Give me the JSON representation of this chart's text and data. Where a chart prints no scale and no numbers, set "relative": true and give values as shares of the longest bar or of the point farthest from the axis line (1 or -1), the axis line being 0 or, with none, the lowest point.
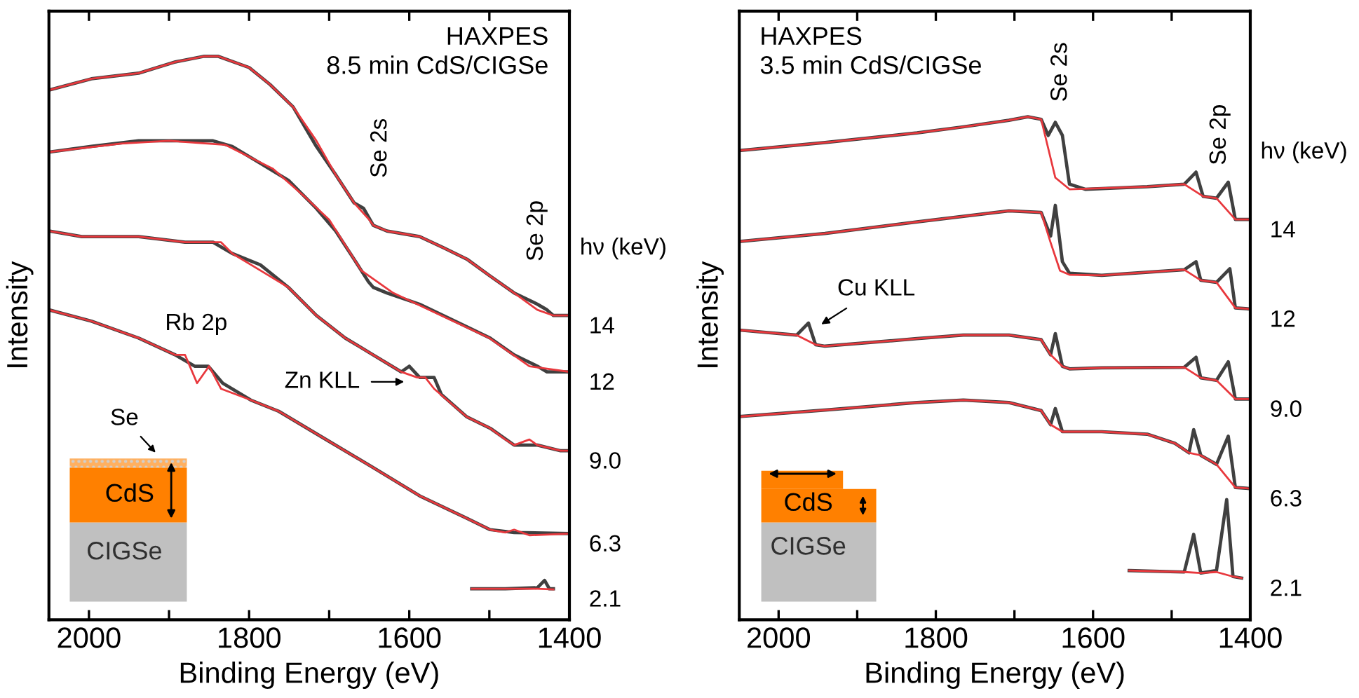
{
  "chart_data": [
    {
      "type": "line",
      "title": "HAXPES\n8.5 min CdS/CIGSe",
      "xlabel": "Binding Energy (eV)",
      "ylabel": "Intensity",
      "legend_title": "hν (keV)",
      "relative": true,
      "tick_labels": "x",
      "xlim": [
        2050,
        1400
      ],
      "xticks": [
        2000,
        {
          "value": 1900,
          "label": null
        },
        1800,
        {
          "value": 1700,
          "label": null
        },
        1600,
        {
          "value": 1500,
          "label": null
        },
        1400
      ],
      "annotations": [
        "Se 2s",
        "Se 2p",
        "Rb 2p",
        "Zn KLL",
        "Se",
        "CdS",
        "CIGSe"
      ],
      "series": [
        {
          "name": "14",
          "color": "#404040",
          "x": [
            2050,
            1997,
            1938,
            1892,
            1856,
            1839,
            1800,
            1774,
            1745,
            1716,
            1692,
            1669,
            1657,
            1645,
            1628,
            1587,
            1557,
            1528,
            1499,
            1469,
            1440,
            1428,
            1420,
            1400
          ],
          "values": [
            0.94,
            0.96,
            0.97,
            0.99,
            1.0,
            1.0,
            0.98,
            0.95,
            0.91,
            0.84,
            0.79,
            0.74,
            0.73,
            0.7,
            0.69,
            0.68,
            0.66,
            0.64,
            0.61,
            0.58,
            0.56,
            0.55,
            0.54,
            0.54
          ]
        },
        {
          "color": "#e8383d",
          "x": [
            2050,
            1997,
            1938,
            1892,
            1856,
            1839,
            1800,
            1774,
            1745,
            1716,
            1692,
            1669,
            1650,
            1645,
            1628,
            1587,
            1557,
            1528,
            1499,
            1469,
            1440,
            1420,
            1400
          ],
          "values": [
            0.94,
            0.96,
            0.97,
            0.99,
            1.0,
            1.0,
            0.98,
            0.95,
            0.91,
            0.85,
            0.79,
            0.74,
            0.71,
            0.7,
            0.69,
            0.68,
            0.66,
            0.64,
            0.61,
            0.58,
            0.55,
            0.54,
            0.54
          ]
        },
        {
          "name": "12",
          "color": "#404040",
          "x": [
            2050,
            1997,
            1938,
            1880,
            1845,
            1821,
            1786,
            1751,
            1716,
            1692,
            1669,
            1651,
            1645,
            1628,
            1587,
            1528,
            1499,
            1469,
            1440,
            1428,
            1400
          ],
          "values": [
            0.83,
            0.84,
            0.85,
            0.85,
            0.85,
            0.84,
            0.81,
            0.78,
            0.73,
            0.69,
            0.64,
            0.6,
            0.59,
            0.58,
            0.56,
            0.52,
            0.5,
            0.47,
            0.45,
            0.44,
            0.44
          ]
        },
        {
          "color": "#e8383d",
          "x": [
            2050,
            1960,
            1900,
            1830,
            1770,
            1730,
            1700,
            1660,
            1620,
            1560,
            1500,
            1450,
            1400
          ],
          "values": [
            0.83,
            0.845,
            0.85,
            0.843,
            0.8,
            0.75,
            0.71,
            0.62,
            0.58,
            0.54,
            0.5,
            0.45,
            0.44
          ]
        },
        {
          "name": "9.0",
          "color": "#404040",
          "x": [
            2050,
            2009,
            1938,
            1880,
            1845,
            1821,
            1786,
            1751,
            1716,
            1680,
            1645,
            1610,
            1600,
            1587,
            1569,
            1560,
            1528,
            1499,
            1469,
            1440,
            1411,
            1400
          ],
          "values": [
            0.69,
            0.68,
            0.68,
            0.67,
            0.67,
            0.65,
            0.63,
            0.59,
            0.54,
            0.5,
            0.47,
            0.44,
            0.45,
            0.43,
            0.43,
            0.4,
            0.36,
            0.34,
            0.31,
            0.31,
            0.3,
            0.3
          ]
        },
        {
          "color": "#e8383d",
          "x": [
            2050,
            2009,
            1938,
            1880,
            1845,
            1835,
            1821,
            1786,
            1751,
            1716,
            1680,
            1645,
            1610,
            1590,
            1580,
            1569,
            1528,
            1499,
            1480,
            1469,
            1450,
            1440,
            1411,
            1400
          ],
          "values": [
            0.69,
            0.68,
            0.68,
            0.67,
            0.67,
            0.67,
            0.65,
            0.62,
            0.59,
            0.54,
            0.5,
            0.47,
            0.44,
            0.43,
            0.43,
            0.41,
            0.36,
            0.34,
            0.32,
            0.31,
            0.32,
            0.31,
            0.3,
            0.3
          ]
        },
        {
          "name": "6.3",
          "color": "#404040",
          "x": [
            2050,
            1997,
            1938,
            1892,
            1868,
            1851,
            1833,
            1798,
            1763,
            1704,
            1645,
            1587,
            1528,
            1499,
            1469,
            1400
          ],
          "values": [
            0.55,
            0.53,
            0.5,
            0.47,
            0.45,
            0.45,
            0.42,
            0.39,
            0.37,
            0.32,
            0.27,
            0.22,
            0.18,
            0.16,
            0.155,
            0.153
          ]
        },
        {
          "color": "#e8383d",
          "x": [
            2050,
            1997,
            1938,
            1892,
            1880,
            1865,
            1850,
            1835,
            1798,
            1763,
            1704,
            1645,
            1587,
            1528,
            1499,
            1480,
            1469,
            1450,
            1400
          ],
          "values": [
            0.55,
            0.53,
            0.5,
            0.47,
            0.47,
            0.42,
            0.45,
            0.41,
            0.39,
            0.37,
            0.32,
            0.27,
            0.22,
            0.18,
            0.16,
            0.155,
            0.16,
            0.15,
            0.153
          ]
        },
        {
          "name": "2.1",
          "color": "#404040",
          "x": [
            1522,
            1480,
            1440,
            1431,
            1425,
            1420
          ],
          "values": [
            0.055,
            0.055,
            0.057,
            0.07,
            0.055,
            0.055
          ]
        },
        {
          "color": "#e8383d",
          "x": [
            1522,
            1480,
            1440,
            1420
          ],
          "values": [
            0.055,
            0.055,
            0.055,
            0.054
          ]
        }
      ]
    },
    {
      "type": "line",
      "title": "HAXPES\n3.5 min CdS/CIGSe",
      "xlabel": "Binding Energy (eV)",
      "ylabel": "Intensity",
      "legend_title": "hν (keV)",
      "relative": true,
      "tick_labels": "x",
      "xlim": [
        2050,
        1400
      ],
      "xticks": [
        2000,
        {
          "value": 1900,
          "label": null
        },
        1800,
        {
          "value": 1700,
          "label": null
        },
        1600,
        {
          "value": 1500,
          "label": null
        },
        1400
      ],
      "annotations": [
        "Se 2s",
        "Se 2p",
        "Cu KLL",
        "CdS",
        "CIGSe"
      ],
      "series": [
        {
          "name": "14",
          "color": "#404040",
          "x": [
            2050,
            1941,
            1824,
            1765,
            1707,
            1683,
            1666,
            1657,
            1648,
            1639,
            1630,
            1610,
            1531,
            1484,
            1469,
            1460,
            1443,
            1428,
            1419,
            1400
          ],
          "values": [
            0.933,
            0.949,
            0.968,
            0.98,
            0.993,
            1.0,
            0.995,
            0.963,
            0.989,
            0.963,
            0.866,
            0.856,
            0.861,
            0.866,
            0.89,
            0.842,
            0.838,
            0.87,
            0.796,
            0.796
          ]
        },
        {
          "color": "#e8383d",
          "x": [
            2050,
            1941,
            1824,
            1765,
            1707,
            1683,
            1666,
            1648,
            1630,
            1531,
            1484,
            1460,
            1443,
            1419,
            1400
          ],
          "values": [
            0.933,
            0.949,
            0.968,
            0.98,
            0.993,
            1.0,
            0.995,
            0.879,
            0.856,
            0.861,
            0.866,
            0.842,
            0.838,
            0.796,
            0.796
          ]
        },
        {
          "name": "12",
          "color": "#404040",
          "x": [
            2050,
            1941,
            1824,
            1707,
            1666,
            1654,
            1648,
            1639,
            1630,
            1589,
            1484,
            1469,
            1463,
            1443,
            1426,
            1419,
            1400
          ],
          "values": [
            0.752,
            0.768,
            0.791,
            0.813,
            0.81,
            0.763,
            0.824,
            0.712,
            0.689,
            0.685,
            0.696,
            0.712,
            0.675,
            0.671,
            0.698,
            0.62,
            0.618
          ]
        },
        {
          "color": "#e8383d",
          "x": [
            2050,
            1941,
            1824,
            1707,
            1666,
            1654,
            1642,
            1630,
            1589,
            1484,
            1463,
            1443,
            1419,
            1400
          ],
          "values": [
            0.752,
            0.768,
            0.791,
            0.813,
            0.81,
            0.75,
            0.694,
            0.686,
            0.685,
            0.696,
            0.675,
            0.671,
            0.62,
            0.618
          ]
        },
        {
          "name": "9.0",
          "color": "#404040",
          "x": [
            2050,
            1977,
            1962,
            1953,
            1941,
            1824,
            1765,
            1707,
            1666,
            1654,
            1648,
            1639,
            1630,
            1589,
            1484,
            1469,
            1463,
            1443,
            1428,
            1419,
            1400
          ],
          "values": [
            0.576,
            0.566,
            0.59,
            0.547,
            0.544,
            0.559,
            0.566,
            0.566,
            0.557,
            0.527,
            0.569,
            0.504,
            0.499,
            0.501,
            0.502,
            0.522,
            0.481,
            0.476,
            0.513,
            0.439,
            0.439
          ]
        },
        {
          "color": "#e8383d",
          "x": [
            2050,
            1977,
            1953,
            1941,
            1824,
            1765,
            1707,
            1666,
            1654,
            1639,
            1630,
            1589,
            1484,
            1463,
            1443,
            1419,
            1400
          ],
          "values": [
            0.576,
            0.566,
            0.547,
            0.544,
            0.559,
            0.566,
            0.566,
            0.557,
            0.527,
            0.504,
            0.499,
            0.501,
            0.502,
            0.481,
            0.476,
            0.439,
            0.439
          ]
        },
        {
          "name": "6.3",
          "color": "#404040",
          "x": [
            2050,
            1941,
            1824,
            1765,
            1707,
            1666,
            1654,
            1648,
            1639,
            1589,
            1531,
            1496,
            1478,
            1472,
            1463,
            1443,
            1428,
            1419,
            1400
          ],
          "values": [
            0.404,
            0.417,
            0.432,
            0.437,
            0.432,
            0.416,
            0.388,
            0.42,
            0.374,
            0.374,
            0.369,
            0.351,
            0.332,
            0.378,
            0.327,
            0.309,
            0.365,
            0.263,
            0.261
          ]
        },
        {
          "color": "#e8383d",
          "x": [
            2050,
            1941,
            1824,
            1765,
            1707,
            1666,
            1654,
            1639,
            1589,
            1531,
            1496,
            1478,
            1463,
            1443,
            1419,
            1400
          ],
          "values": [
            0.404,
            0.417,
            0.432,
            0.437,
            0.432,
            0.416,
            0.388,
            0.374,
            0.374,
            0.369,
            0.351,
            0.332,
            0.327,
            0.309,
            0.263,
            0.261
          ]
        },
        {
          "name": "2.1",
          "color": "#404040",
          "x": [
            1554,
            1484,
            1472,
            1463,
            1443,
            1430,
            1422,
            1411
          ],
          "values": [
            0.098,
            0.095,
            0.17,
            0.093,
            0.098,
            0.239,
            0.086,
            0.083
          ]
        },
        {
          "color": "#e8383d",
          "x": [
            1554,
            1484,
            1463,
            1443,
            1422,
            1411
          ],
          "values": [
            0.098,
            0.095,
            0.093,
            0.095,
            0.086,
            0.083
          ]
        }
      ]
    }
  ]
}
